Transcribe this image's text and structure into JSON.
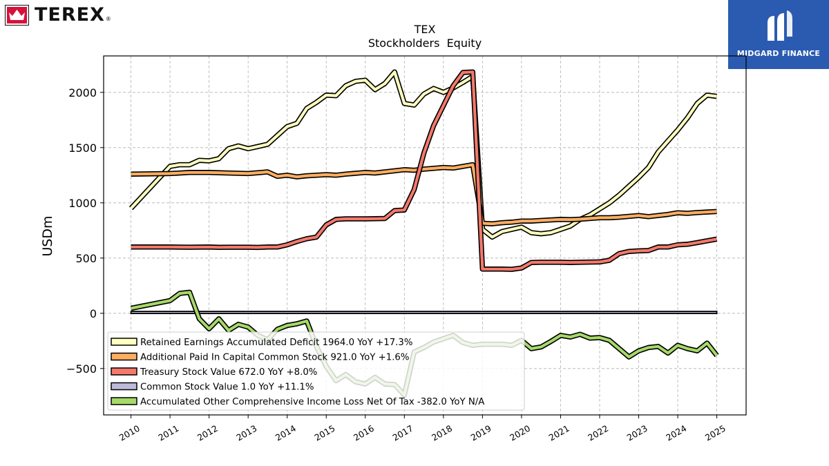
{
  "header": {
    "company_logo": {
      "name": "TEREX",
      "registered_mark": "®",
      "icon": "terex-crown-icon",
      "color": "#d6123c"
    },
    "watermark": {
      "text": "MIDGARD FINANCE",
      "icon": "midgard-m-icon",
      "background": "#2a5bb0"
    }
  },
  "chart_data": {
    "type": "line",
    "title": "TEX",
    "subtitle": "Stockholders  Equity",
    "ylabel": "USDm",
    "xlabel": "",
    "xlim": [
      2009.3,
      2025.75
    ],
    "ylim": [
      -920,
      2330
    ],
    "x_ticks": [
      "2010",
      "2011",
      "2012",
      "2013",
      "2014",
      "2015",
      "2016",
      "2017",
      "2018",
      "2019",
      "2020",
      "2021",
      "2022",
      "2023",
      "2024",
      "2025"
    ],
    "y_ticks": [
      -500,
      0,
      500,
      1000,
      1500,
      2000
    ],
    "y_tick_labels": [
      "−500",
      "0",
      "500",
      "1000",
      "1500",
      "2000"
    ],
    "grid": true,
    "legend_position": "lower-left",
    "series": [
      {
        "name": "Retained Earnings Accumulated Deficit",
        "legend_label": "Retained Earnings Accumulated Deficit  1964.0 YoY +17.3%",
        "color": "#ffffc0",
        "points": [
          [
            2010.0,
            950
          ],
          [
            2011.0,
            1330
          ],
          [
            2011.25,
            1345
          ],
          [
            2011.5,
            1345
          ],
          [
            2011.75,
            1385
          ],
          [
            2012.0,
            1380
          ],
          [
            2012.25,
            1400
          ],
          [
            2012.5,
            1490
          ],
          [
            2012.75,
            1515
          ],
          [
            2013.0,
            1490
          ],
          [
            2013.5,
            1530
          ],
          [
            2013.75,
            1610
          ],
          [
            2014.0,
            1690
          ],
          [
            2014.25,
            1720
          ],
          [
            2014.5,
            1855
          ],
          [
            2014.75,
            1910
          ],
          [
            2015.0,
            1975
          ],
          [
            2015.25,
            1970
          ],
          [
            2015.5,
            2060
          ],
          [
            2015.75,
            2100
          ],
          [
            2016.0,
            2110
          ],
          [
            2016.25,
            2025
          ],
          [
            2016.5,
            2080
          ],
          [
            2016.75,
            2185
          ],
          [
            2017.0,
            1900
          ],
          [
            2017.25,
            1885
          ],
          [
            2017.5,
            1985
          ],
          [
            2017.75,
            2035
          ],
          [
            2018.0,
            2000
          ],
          [
            2018.25,
            2040
          ],
          [
            2018.5,
            2090
          ],
          [
            2018.75,
            2145
          ],
          [
            2019.0,
            760
          ],
          [
            2019.25,
            690
          ],
          [
            2019.5,
            740
          ],
          [
            2019.75,
            760
          ],
          [
            2020.0,
            780
          ],
          [
            2020.25,
            730
          ],
          [
            2020.5,
            720
          ],
          [
            2020.75,
            730
          ],
          [
            2021.0,
            760
          ],
          [
            2021.25,
            790
          ],
          [
            2021.5,
            850
          ],
          [
            2021.75,
            890
          ],
          [
            2022.0,
            945
          ],
          [
            2022.25,
            1000
          ],
          [
            2022.5,
            1070
          ],
          [
            2022.75,
            1150
          ],
          [
            2023.0,
            1230
          ],
          [
            2023.25,
            1320
          ],
          [
            2023.5,
            1460
          ],
          [
            2023.75,
            1560
          ],
          [
            2024.0,
            1660
          ],
          [
            2024.25,
            1770
          ],
          [
            2024.5,
            1900
          ],
          [
            2024.75,
            1975
          ],
          [
            2025.0,
            1964
          ]
        ]
      },
      {
        "name": "Additional Paid In Capital Common Stock",
        "legend_label": "Additional Paid In Capital Common Stock  921.0 YoY +1.6%",
        "color": "#fdae61",
        "points": [
          [
            2010.0,
            1260
          ],
          [
            2011.0,
            1265
          ],
          [
            2011.5,
            1275
          ],
          [
            2012.0,
            1275
          ],
          [
            2012.5,
            1270
          ],
          [
            2013.0,
            1265
          ],
          [
            2013.5,
            1280
          ],
          [
            2013.75,
            1240
          ],
          [
            2014.0,
            1250
          ],
          [
            2014.25,
            1235
          ],
          [
            2014.5,
            1245
          ],
          [
            2015.0,
            1255
          ],
          [
            2015.25,
            1250
          ],
          [
            2015.5,
            1260
          ],
          [
            2016.0,
            1275
          ],
          [
            2016.25,
            1270
          ],
          [
            2016.5,
            1280
          ],
          [
            2017.0,
            1300
          ],
          [
            2017.25,
            1295
          ],
          [
            2017.5,
            1305
          ],
          [
            2018.0,
            1320
          ],
          [
            2018.25,
            1315
          ],
          [
            2018.75,
            1345
          ],
          [
            2019.0,
            815
          ],
          [
            2019.25,
            810
          ],
          [
            2019.5,
            820
          ],
          [
            2019.75,
            825
          ],
          [
            2020.0,
            835
          ],
          [
            2020.25,
            835
          ],
          [
            2020.5,
            840
          ],
          [
            2021.0,
            850
          ],
          [
            2021.25,
            848
          ],
          [
            2021.5,
            852
          ],
          [
            2022.0,
            865
          ],
          [
            2022.25,
            865
          ],
          [
            2022.5,
            870
          ],
          [
            2023.0,
            885
          ],
          [
            2023.25,
            875
          ],
          [
            2023.5,
            885
          ],
          [
            2023.75,
            895
          ],
          [
            2024.0,
            910
          ],
          [
            2024.25,
            905
          ],
          [
            2024.5,
            912
          ],
          [
            2025.0,
            921
          ]
        ]
      },
      {
        "name": "Treasury Stock Value",
        "legend_label": "Treasury Stock Value  672.0 YoY +8.0%",
        "color": "#f4796b",
        "points": [
          [
            2010.0,
            600
          ],
          [
            2011.0,
            600
          ],
          [
            2011.5,
            598
          ],
          [
            2012.0,
            600
          ],
          [
            2012.25,
            597
          ],
          [
            2012.5,
            598
          ],
          [
            2013.0,
            598
          ],
          [
            2013.25,
            596
          ],
          [
            2013.5,
            600
          ],
          [
            2013.75,
            600
          ],
          [
            2014.0,
            620
          ],
          [
            2014.25,
            650
          ],
          [
            2014.5,
            675
          ],
          [
            2014.75,
            690
          ],
          [
            2015.0,
            800
          ],
          [
            2015.25,
            850
          ],
          [
            2015.5,
            855
          ],
          [
            2016.0,
            855
          ],
          [
            2016.25,
            856
          ],
          [
            2016.5,
            858
          ],
          [
            2016.75,
            930
          ],
          [
            2017.0,
            935
          ],
          [
            2017.25,
            1120
          ],
          [
            2017.5,
            1450
          ],
          [
            2017.75,
            1700
          ],
          [
            2018.0,
            1880
          ],
          [
            2018.25,
            2060
          ],
          [
            2018.5,
            2180
          ],
          [
            2018.75,
            2185
          ],
          [
            2019.0,
            400
          ],
          [
            2019.5,
            400
          ],
          [
            2019.75,
            398
          ],
          [
            2020.0,
            410
          ],
          [
            2020.25,
            460
          ],
          [
            2020.5,
            462
          ],
          [
            2021.0,
            462
          ],
          [
            2021.25,
            460
          ],
          [
            2021.5,
            462
          ],
          [
            2022.0,
            465
          ],
          [
            2022.25,
            480
          ],
          [
            2022.5,
            540
          ],
          [
            2022.75,
            560
          ],
          [
            2023.0,
            565
          ],
          [
            2023.25,
            568
          ],
          [
            2023.5,
            600
          ],
          [
            2023.75,
            600
          ],
          [
            2024.0,
            620
          ],
          [
            2024.25,
            625
          ],
          [
            2024.5,
            640
          ],
          [
            2025.0,
            672
          ]
        ]
      },
      {
        "name": "Common Stock Value",
        "legend_label": "Common Stock Value  1.0 YoY +11.1%",
        "color": "#bdbbd7",
        "band": true,
        "band_top": 17,
        "points": [
          [
            2010.0,
            1
          ],
          [
            2025.0,
            1
          ]
        ]
      },
      {
        "name": "Accumulated Other Comprehensive Income Loss Net Of Tax",
        "legend_label": "Accumulated Other Comprehensive Income Loss Net Of Tax  -382.0 YoY N/A",
        "color": "#a6d96a",
        "points": [
          [
            2010.0,
            45
          ],
          [
            2011.0,
            115
          ],
          [
            2011.25,
            180
          ],
          [
            2011.5,
            190
          ],
          [
            2011.75,
            -50
          ],
          [
            2012.0,
            -140
          ],
          [
            2012.25,
            -50
          ],
          [
            2012.5,
            -155
          ],
          [
            2012.75,
            -100
          ],
          [
            2013.0,
            -125
          ],
          [
            2013.25,
            -200
          ],
          [
            2013.5,
            -240
          ],
          [
            2013.75,
            -145
          ],
          [
            2014.0,
            -110
          ],
          [
            2014.25,
            -95
          ],
          [
            2014.5,
            -70
          ],
          [
            2014.75,
            -300
          ],
          [
            2015.0,
            -480
          ],
          [
            2015.25,
            -610
          ],
          [
            2015.5,
            -555
          ],
          [
            2015.75,
            -620
          ],
          [
            2016.0,
            -640
          ],
          [
            2016.25,
            -580
          ],
          [
            2016.5,
            -640
          ],
          [
            2016.75,
            -645
          ],
          [
            2017.0,
            -740
          ],
          [
            2017.25,
            -350
          ],
          [
            2017.5,
            -310
          ],
          [
            2017.75,
            -260
          ],
          [
            2018.0,
            -230
          ],
          [
            2018.25,
            -200
          ],
          [
            2018.5,
            -265
          ],
          [
            2018.75,
            -290
          ],
          [
            2019.0,
            -280
          ],
          [
            2019.5,
            -280
          ],
          [
            2019.75,
            -290
          ],
          [
            2020.0,
            -245
          ],
          [
            2020.25,
            -320
          ],
          [
            2020.5,
            -305
          ],
          [
            2020.75,
            -255
          ],
          [
            2021.0,
            -200
          ],
          [
            2021.25,
            -215
          ],
          [
            2021.5,
            -190
          ],
          [
            2021.75,
            -225
          ],
          [
            2022.0,
            -220
          ],
          [
            2022.25,
            -245
          ],
          [
            2022.5,
            -320
          ],
          [
            2022.75,
            -395
          ],
          [
            2023.0,
            -340
          ],
          [
            2023.25,
            -310
          ],
          [
            2023.5,
            -300
          ],
          [
            2023.75,
            -360
          ],
          [
            2024.0,
            -290
          ],
          [
            2024.25,
            -320
          ],
          [
            2024.5,
            -340
          ],
          [
            2024.75,
            -270
          ],
          [
            2025.0,
            -382
          ]
        ]
      }
    ]
  }
}
